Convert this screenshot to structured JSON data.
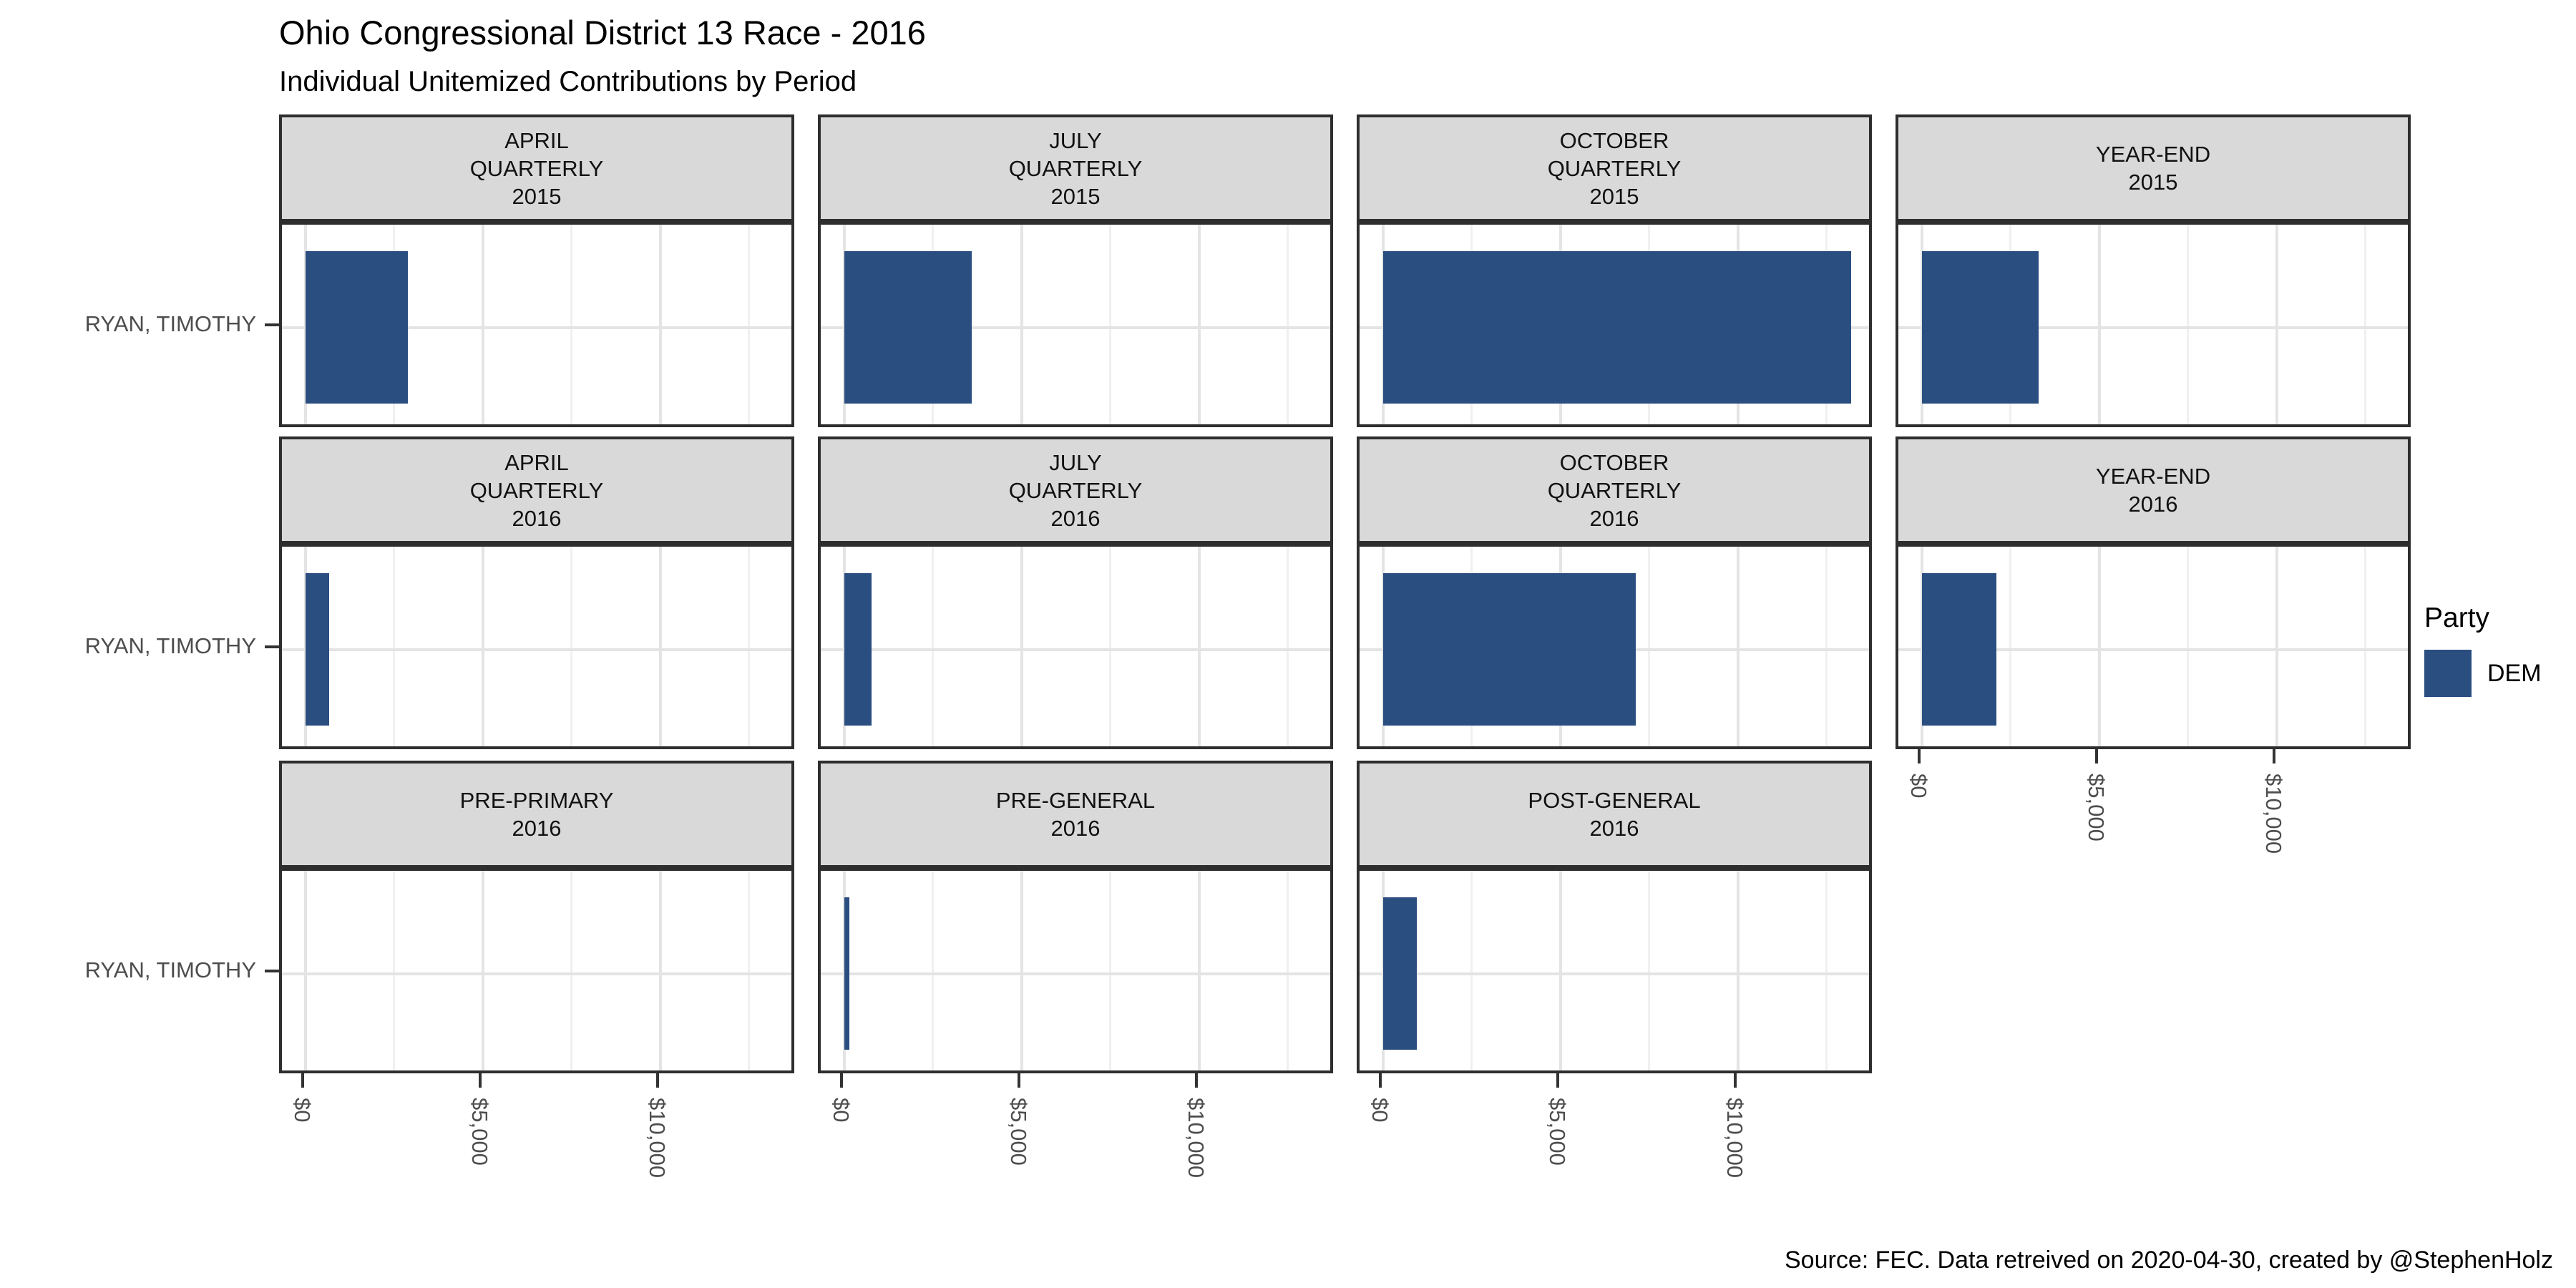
{
  "title": "Ohio Congressional District 13 Race - 2016",
  "subtitle": "Individual Unitemized Contributions by Period",
  "candidate": "RYAN, TIMOTHY",
  "legend": {
    "title": "Party",
    "items": [
      {
        "label": "DEM",
        "color": "#2b4e80"
      }
    ]
  },
  "source": "Source: FEC. Data retreived on 2020-04-30, created by @StephenHolz",
  "chart_data": {
    "type": "bar",
    "orientation": "horizontal",
    "title": "Ohio Congressional District 13 Race - 2016",
    "subtitle": "Individual Unitemized Contributions by Period",
    "y_category": "RYAN, TIMOTHY",
    "party": "DEM",
    "bar_color": "#2b4e80",
    "legend_position": "right",
    "grid": "vertical major+minor gridlines, horizontal major at category",
    "x_axis": {
      "range": [
        -660,
        13860
      ],
      "ticks": [
        0,
        5000,
        10000
      ],
      "tick_labels": [
        "$0",
        "$5,000",
        "$10,000"
      ],
      "minor_ticks": [
        2500,
        7500,
        12500
      ],
      "tick_label_angle_deg": 90
    },
    "facets": [
      {
        "label_lines": [
          "APRIL",
          "QUARTERLY",
          "2015"
        ],
        "period": "APRIL QUARTERLY 2015",
        "value": 2890,
        "row": 0,
        "col": 0,
        "show_x_axis": false
      },
      {
        "label_lines": [
          "JULY",
          "QUARTERLY",
          "2015"
        ],
        "period": "JULY QUARTERLY 2015",
        "value": 3600,
        "row": 0,
        "col": 1,
        "show_x_axis": false
      },
      {
        "label_lines": [
          "OCTOBER",
          "QUARTERLY",
          "2015"
        ],
        "period": "OCTOBER QUARTERLY 2015",
        "value": 13200,
        "row": 0,
        "col": 2,
        "show_x_axis": false
      },
      {
        "label_lines": [
          "YEAR-END",
          "2015"
        ],
        "period": "YEAR-END 2015",
        "value": 3300,
        "row": 0,
        "col": 3,
        "show_x_axis": false
      },
      {
        "label_lines": [
          "APRIL",
          "QUARTERLY",
          "2016"
        ],
        "period": "APRIL QUARTERLY 2016",
        "value": 675,
        "row": 1,
        "col": 0,
        "show_x_axis": false
      },
      {
        "label_lines": [
          "JULY",
          "QUARTERLY",
          "2016"
        ],
        "period": "JULY QUARTERLY 2016",
        "value": 770,
        "row": 1,
        "col": 1,
        "show_x_axis": false
      },
      {
        "label_lines": [
          "OCTOBER",
          "QUARTERLY",
          "2016"
        ],
        "period": "OCTOBER QUARTERLY 2016",
        "value": 7120,
        "row": 1,
        "col": 2,
        "show_x_axis": false
      },
      {
        "label_lines": [
          "YEAR-END",
          "2016"
        ],
        "period": "YEAR-END 2016",
        "value": 2110,
        "row": 1,
        "col": 3,
        "show_x_axis": true
      },
      {
        "label_lines": [
          "PRE-PRIMARY",
          "2016"
        ],
        "period": "PRE-PRIMARY 2016",
        "value": 0,
        "row": 2,
        "col": 0,
        "show_x_axis": true
      },
      {
        "label_lines": [
          "PRE-GENERAL",
          "2016"
        ],
        "period": "PRE-GENERAL 2016",
        "value": 145,
        "row": 2,
        "col": 1,
        "show_x_axis": true
      },
      {
        "label_lines": [
          "POST-GENERAL",
          "2016"
        ],
        "period": "POST-GENERAL 2016",
        "value": 960,
        "row": 2,
        "col": 2,
        "show_x_axis": true
      }
    ]
  }
}
